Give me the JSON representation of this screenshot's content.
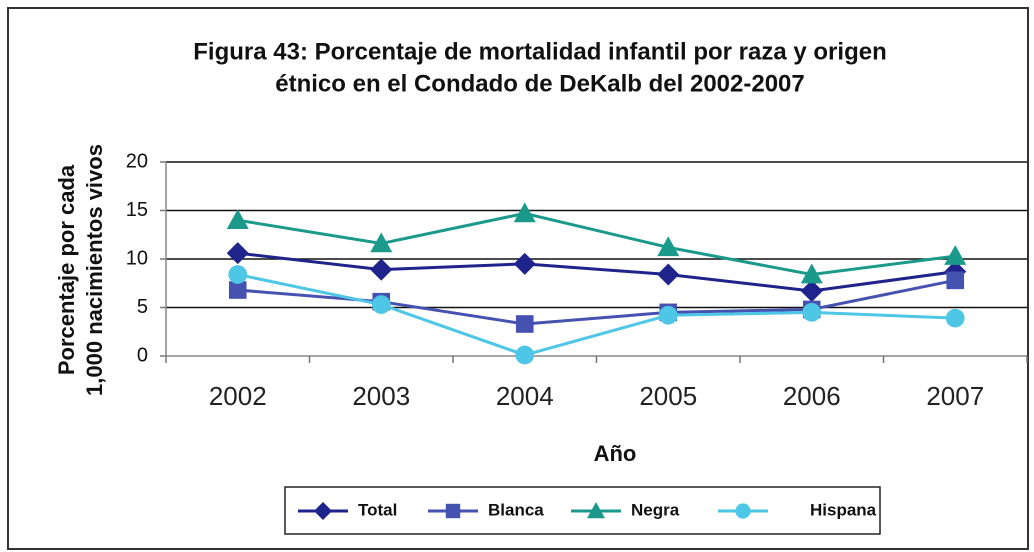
{
  "chart_data": {
    "type": "line",
    "title": [
      "Figura 43: Porcentaje de mortalidad infantil por raza y origen",
      "étnico en el Condado de DeKalb del 2002-2007"
    ],
    "xlabel": "Año",
    "ylabel": [
      "Porcentaje por cada",
      "1,000 nacimientos vivos"
    ],
    "categories": [
      "2002",
      "2003",
      "2004",
      "2005",
      "2006",
      "2007"
    ],
    "series": [
      {
        "name": "Total",
        "color": "#1f238c",
        "marker": "diamond",
        "values": [
          10.6,
          8.9,
          9.5,
          8.4,
          6.7,
          8.7
        ]
      },
      {
        "name": "Blanca",
        "color": "#4652b0",
        "marker": "square",
        "values": [
          6.8,
          5.6,
          3.3,
          4.5,
          4.8,
          7.8
        ]
      },
      {
        "name": "Negra",
        "color": "#1b998a",
        "marker": "triangle",
        "values": [
          14.0,
          11.6,
          14.7,
          11.2,
          8.4,
          10.3
        ]
      },
      {
        "name": "Hispana",
        "color": "#4ec6e6",
        "marker": "circle",
        "values": [
          8.4,
          5.3,
          0.1,
          4.2,
          4.5,
          3.9
        ]
      }
    ],
    "ylim": [
      0,
      20
    ],
    "yticks": [
      0,
      5,
      10,
      15,
      20
    ],
    "grid": true,
    "legend": "bottom"
  }
}
